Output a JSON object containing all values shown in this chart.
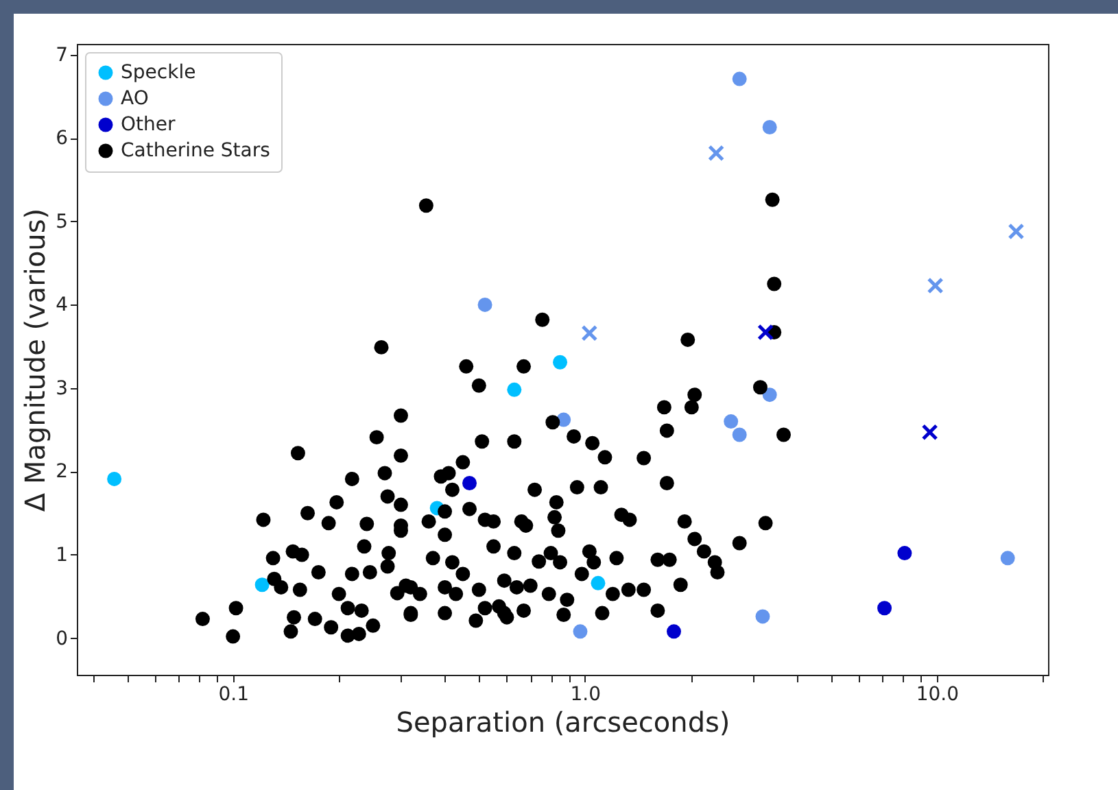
{
  "chart_data": {
    "type": "scatter",
    "xlabel": "Separation (arcseconds)",
    "ylabel": "Δ Magnitude (various)",
    "log": "x",
    "grid": false,
    "legend": "top left",
    "xlim": [
      0.036,
      20.7
    ],
    "ylim": [
      -0.44,
      7.13
    ],
    "xticks": [
      {
        "value": 0.04,
        "label": null
      },
      {
        "value": 0.05,
        "label": null
      },
      {
        "value": 0.06,
        "label": null
      },
      {
        "value": 0.07,
        "label": null
      },
      {
        "value": 0.08,
        "label": null
      },
      {
        "value": 0.09,
        "label": null
      },
      {
        "value": 0.1,
        "label": "0.1"
      },
      {
        "value": 0.2,
        "label": null
      },
      {
        "value": 0.3,
        "label": null
      },
      {
        "value": 0.4,
        "label": null
      },
      {
        "value": 0.5,
        "label": null
      },
      {
        "value": 0.6,
        "label": null
      },
      {
        "value": 0.7,
        "label": null
      },
      {
        "value": 0.8,
        "label": null
      },
      {
        "value": 0.9,
        "label": null
      },
      {
        "value": 1,
        "label": "1.0"
      },
      {
        "value": 2,
        "label": null
      },
      {
        "value": 3,
        "label": null
      },
      {
        "value": 4,
        "label": null
      },
      {
        "value": 5,
        "label": null
      },
      {
        "value": 6,
        "label": null
      },
      {
        "value": 7,
        "label": null
      },
      {
        "value": 8,
        "label": null
      },
      {
        "value": 9,
        "label": null
      },
      {
        "value": 10,
        "label": "10.0"
      },
      {
        "value": 20,
        "label": null
      }
    ],
    "yticks": [
      0,
      1,
      2,
      3,
      4,
      5,
      6,
      7
    ],
    "series": [
      {
        "name": "Speckle",
        "color": "#00bfff",
        "marker": "circle",
        "x": [
          0.046,
          0.121,
          0.85,
          0.63,
          0.38,
          1.09
        ],
        "values": [
          1.91,
          0.64,
          3.31,
          2.98,
          1.56,
          0.66
        ]
      },
      {
        "name": "AO",
        "color": "#6495ed",
        "marker": "circle",
        "x": [
          0.52,
          0.87,
          0.97,
          2.75,
          3.35,
          3.35,
          2.6,
          2.75,
          15.9,
          3.2
        ],
        "values": [
          4.0,
          2.62,
          0.08,
          6.71,
          6.13,
          2.92,
          2.6,
          2.44,
          0.96,
          0.26
        ]
      },
      {
        "name": "Other",
        "color": "#0000cd",
        "marker": "circle",
        "x": [
          0.47,
          1.79,
          8.1,
          7.1
        ],
        "values": [
          1.86,
          0.08,
          1.02,
          0.36
        ]
      },
      {
        "name": "Catherine Stars",
        "color": "#000000",
        "marker": "circle",
        "x": [
          0.264,
          0.3,
          0.256,
          0.3,
          0.153,
          0.218,
          0.27,
          0.275,
          0.3,
          0.197,
          0.163,
          0.187,
          0.122,
          0.24,
          0.3,
          0.236,
          0.148,
          0.157,
          0.13,
          0.277,
          0.275,
          0.131,
          0.137,
          0.155,
          0.175,
          0.218,
          0.245,
          0.2,
          0.212,
          0.232,
          0.293,
          0.32,
          0.32,
          0.102,
          0.082,
          0.1,
          0.149,
          0.146,
          0.171,
          0.19,
          0.212,
          0.228,
          0.25,
          0.354,
          0.757,
          1.96,
          0.46,
          0.67,
          0.5,
          2.05,
          2.01,
          1.68,
          1.71,
          0.81,
          0.93,
          1.05,
          1.14,
          0.51,
          0.63,
          1.47,
          1.71,
          0.45,
          0.41,
          0.39,
          0.42,
          0.72,
          0.95,
          1.11,
          0.83,
          0.4,
          0.47,
          0.3,
          0.36,
          0.4,
          0.52,
          0.55,
          0.66,
          0.68,
          0.82,
          0.84,
          1.27,
          1.34,
          1.92,
          2.05,
          2.18,
          0.55,
          0.63,
          0.37,
          0.42,
          0.45,
          0.74,
          0.8,
          0.85,
          1.03,
          1.06,
          0.98,
          1.23,
          1.61,
          1.74,
          1.87,
          0.31,
          0.34,
          0.32,
          0.4,
          0.43,
          0.4,
          0.5,
          0.59,
          0.64,
          0.7,
          0.52,
          0.59,
          0.67,
          0.49,
          0.79,
          0.89,
          0.87,
          1.12,
          1.2,
          1.33,
          1.47,
          1.61,
          0.6,
          0.57,
          3.41,
          3.45,
          3.45,
          3.15,
          3.67,
          2.34,
          2.38,
          2.75,
          3.26
        ],
        "values": [
          3.49,
          2.67,
          2.41,
          2.19,
          2.22,
          1.91,
          1.98,
          1.7,
          1.6,
          1.63,
          1.5,
          1.38,
          1.42,
          1.37,
          1.29,
          1.1,
          1.04,
          1.0,
          0.96,
          1.02,
          0.86,
          0.71,
          0.61,
          0.58,
          0.79,
          0.77,
          0.79,
          0.53,
          0.36,
          0.33,
          0.54,
          0.61,
          0.28,
          0.36,
          0.23,
          0.02,
          0.25,
          0.08,
          0.23,
          0.13,
          0.03,
          0.05,
          0.15,
          5.19,
          3.82,
          3.58,
          3.26,
          3.26,
          3.03,
          2.92,
          2.77,
          2.77,
          2.49,
          2.59,
          2.42,
          2.34,
          2.17,
          2.36,
          2.36,
          2.16,
          1.86,
          2.11,
          1.98,
          1.94,
          1.78,
          1.78,
          1.81,
          1.81,
          1.63,
          1.52,
          1.55,
          1.35,
          1.4,
          1.24,
          1.42,
          1.4,
          1.4,
          1.35,
          1.45,
          1.29,
          1.48,
          1.42,
          1.4,
          1.19,
          1.04,
          1.1,
          1.02,
          0.96,
          0.91,
          0.77,
          0.92,
          1.02,
          0.91,
          1.04,
          0.91,
          0.77,
          0.96,
          0.94,
          0.94,
          0.64,
          0.63,
          0.53,
          0.3,
          0.61,
          0.53,
          0.3,
          0.58,
          0.69,
          0.61,
          0.63,
          0.36,
          0.3,
          0.33,
          0.21,
          0.53,
          0.46,
          0.28,
          0.3,
          0.53,
          0.58,
          0.58,
          0.33,
          0.25,
          0.38,
          5.26,
          4.25,
          3.67,
          3.01,
          2.44,
          0.91,
          0.79,
          1.14,
          1.38
        ]
      },
      {
        "color": "#6495ed",
        "marker": "cross",
        "x": [
          1.03,
          2.36,
          16.8,
          9.9
        ],
        "values": [
          3.66,
          5.82,
          4.88,
          4.23
        ]
      },
      {
        "color": "#0000cd",
        "marker": "cross",
        "x": [
          3.26,
          9.55
        ],
        "values": [
          3.67,
          2.47
        ]
      }
    ]
  }
}
